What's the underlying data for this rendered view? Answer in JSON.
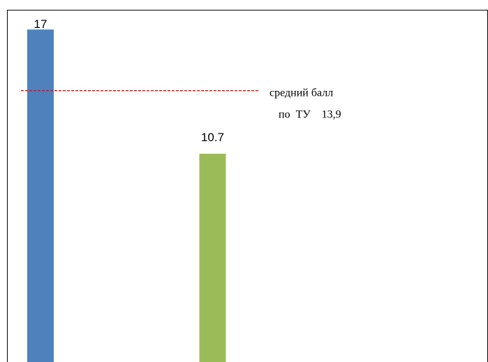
{
  "chart_data": {
    "type": "bar",
    "categories": [
      null,
      null
    ],
    "values": [
      17,
      10.7
    ],
    "colors": [
      "#4f81bd",
      "#9bbb59"
    ],
    "ylim": [
      0,
      18
    ],
    "reference_line": {
      "value": 13.9,
      "color": "#ff0000"
    },
    "annotation": [
      "средний балл",
      "по  ТУ    13,9"
    ]
  }
}
